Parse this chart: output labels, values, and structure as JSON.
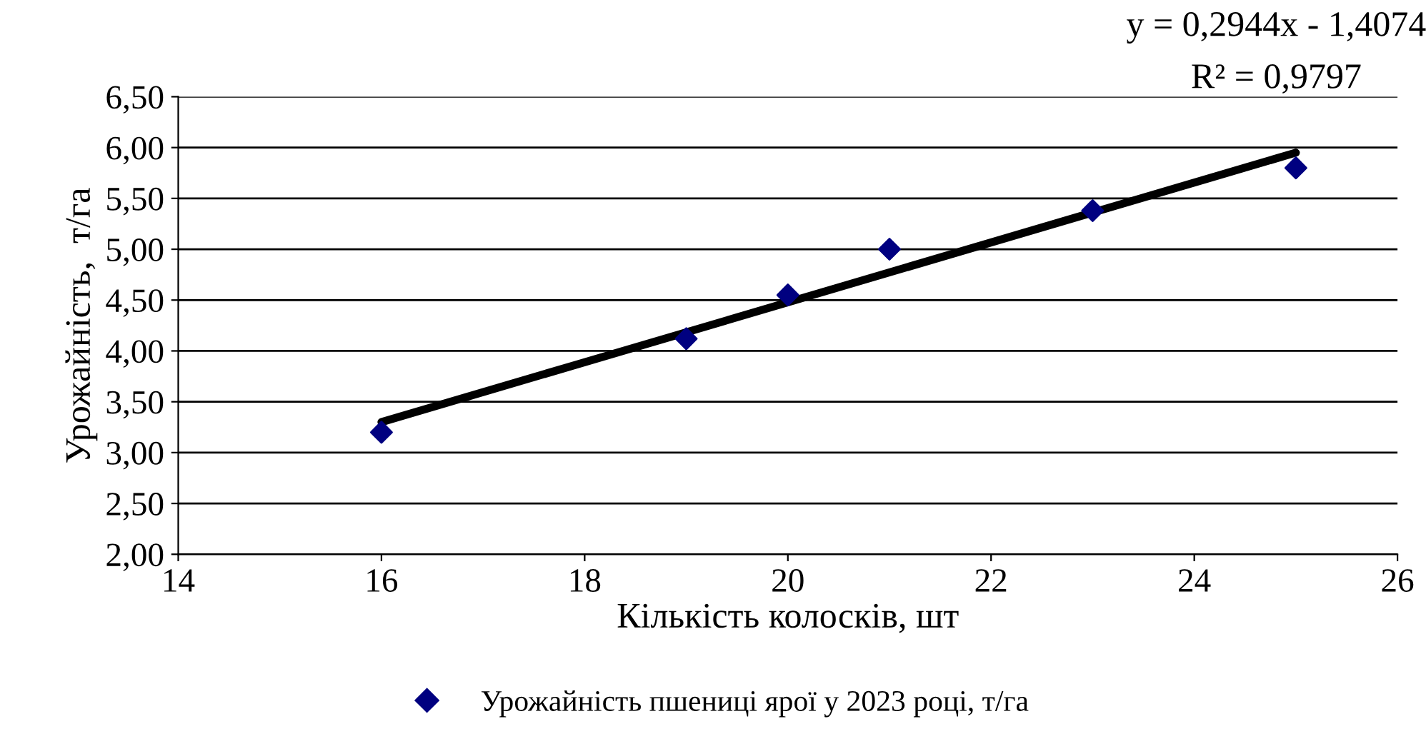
{
  "chart_data": {
    "type": "scatter",
    "xlabel": "Кількість колосків, шт",
    "ylabel": "Урожайність,  т/га",
    "x": [
      16,
      19,
      20,
      21,
      23,
      25
    ],
    "series": [
      {
        "name": "Урожайність пшениці ярої у 2023 році, т/га",
        "color": "#000080",
        "marker": "diamond",
        "values": [
          3.2,
          4.12,
          4.55,
          5.0,
          5.38,
          5.8
        ]
      },
      {
        "type": "line",
        "color": "#000000",
        "x": [
          16,
          25
        ],
        "values": [
          3.3,
          5.95
        ],
        "line_style": "solid"
      }
    ],
    "annotations": [
      "y = 0,2944x - 1,4074",
      "R² = 0,9797"
    ],
    "xlim": [
      14,
      26
    ],
    "xticks": [
      14,
      16,
      18,
      20,
      22,
      24,
      26
    ],
    "ylim": [
      2.0,
      6.5
    ],
    "yticks": [
      {
        "value": 2.0,
        "label": "2,00"
      },
      {
        "value": 2.5,
        "label": "2,50"
      },
      {
        "value": 3.0,
        "label": "3,00"
      },
      {
        "value": 3.5,
        "label": "3,50"
      },
      {
        "value": 4.0,
        "label": "4,00"
      },
      {
        "value": 4.5,
        "label": "4,50"
      },
      {
        "value": 5.0,
        "label": "5,00"
      },
      {
        "value": 5.5,
        "label": "5,50"
      },
      {
        "value": 6.0,
        "label": "6,00"
      },
      {
        "value": 6.5,
        "label": "6,50"
      }
    ],
    "grid": "y",
    "legend": "bottom"
  }
}
